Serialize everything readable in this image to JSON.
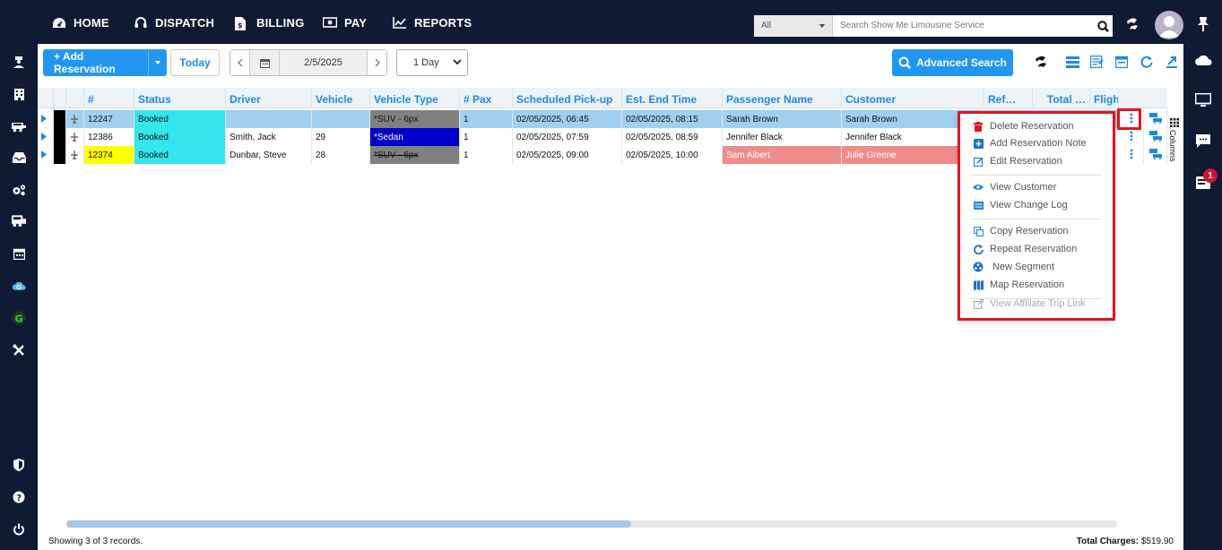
{
  "nav": {
    "items": [
      {
        "label": "HOME",
        "icon": "dashboard-icon"
      },
      {
        "label": "DISPATCH",
        "icon": "headset-icon"
      },
      {
        "label": "BILLING",
        "icon": "invoice-icon"
      },
      {
        "label": "PAY",
        "icon": "money-icon"
      },
      {
        "label": "REPORTS",
        "icon": "chart-icon"
      }
    ],
    "search_scope": "All",
    "search_placeholder": "Search Show Me Limousine Service"
  },
  "toolbar": {
    "add_label": "+ Add Reservation",
    "today_label": "Today",
    "date_value": "2/5/2025",
    "range_value": "1 Day",
    "advanced_search_label": "Advanced Search"
  },
  "grid": {
    "headers": [
      "#",
      "Status",
      "Driver",
      "Vehicle",
      "Vehicle Type",
      "# Pax",
      "Scheduled Pick-up",
      "Est. End Time",
      "Passenger Name",
      "Customer",
      "Ref…",
      "Total …",
      "Flight"
    ],
    "rows": [
      {
        "id": "12247",
        "status": "Booked",
        "driver": "",
        "vehicle": "",
        "vehicle_type": "*SUV - 6px",
        "pax": "1",
        "pickup": "02/05/2025, 06:45",
        "end": "02/05/2025, 08:15",
        "passenger": "Sarah Brown",
        "customer": "Sarah Brown"
      },
      {
        "id": "12386",
        "status": "Booked",
        "driver": "Smith, Jack",
        "vehicle": "29",
        "vehicle_type": "*Sedan",
        "pax": "1",
        "pickup": "02/05/2025, 07:59",
        "end": "02/05/2025, 08:59",
        "passenger": "Jennifer Black",
        "customer": "Jennifer Black"
      },
      {
        "id": "12374",
        "status": "Booked",
        "driver": "Dunbar, Steve",
        "vehicle": "28",
        "vehicle_type": "*SUV - 6px",
        "pax": "1",
        "pickup": "02/05/2025, 09:00",
        "end": "02/05/2025, 10:00",
        "passenger": "Sam Albert",
        "customer": "Julie Greene"
      }
    ],
    "columns_tab_label": "Columns"
  },
  "context_menu": {
    "items": [
      {
        "label": "Delete Reservation",
        "icon": "trash-icon"
      },
      {
        "label": "Add Reservation Note",
        "icon": "plus-square-icon"
      },
      {
        "label": "Edit Reservation",
        "icon": "edit-icon"
      },
      {
        "label": "View Customer",
        "icon": "eye-icon"
      },
      {
        "label": "View Change Log",
        "icon": "list-icon"
      },
      {
        "label": "Copy Reservation",
        "icon": "copy-icon"
      },
      {
        "label": "Repeat Reservation",
        "icon": "repeat-icon"
      },
      {
        "label": "New Segment",
        "icon": "segment-icon"
      },
      {
        "label": "Map Reservation",
        "icon": "map-icon"
      },
      {
        "label": "View Affiliate Trip Link",
        "icon": "external-link-icon"
      }
    ]
  },
  "footer": {
    "records_text": "Showing 3 of 3 records.",
    "total_label": "Total Charges:",
    "total_value": "$519.90"
  },
  "notifications": {
    "badge_count": "1"
  },
  "colors": {
    "accent": "#2196f3",
    "nav_bg": "#0f1b33",
    "status_cyan": "#33e6ec",
    "id_yellow": "#ffff00",
    "vtype_gray": "#808080",
    "vtype_blue": "#0000cc",
    "selected_row": "#9fd0ef",
    "passenger_red": "#f08c8c",
    "highlight_red": "#e0161f"
  }
}
